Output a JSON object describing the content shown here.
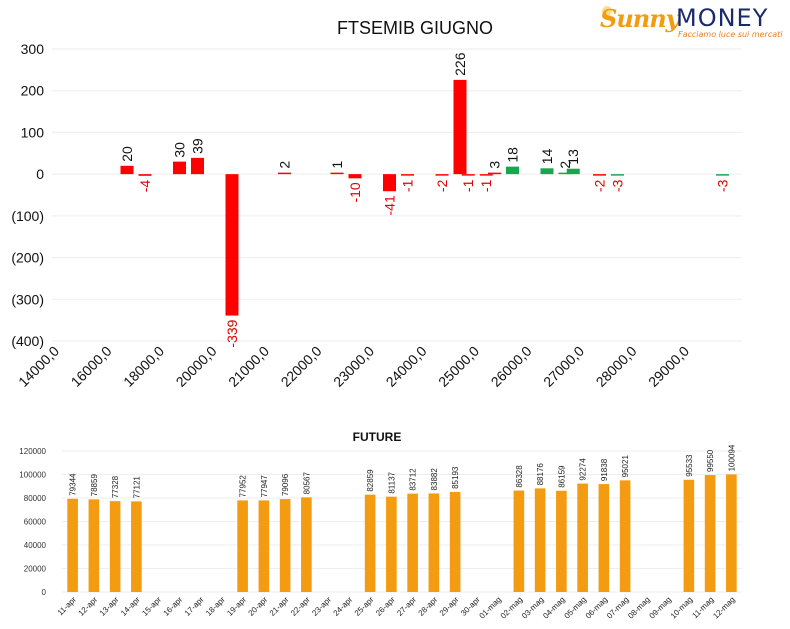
{
  "logo": {
    "brand_part1": "Sunny",
    "brand_part2": "MONEY",
    "tagline": "Facciamo luce sui mercati"
  },
  "colors": {
    "negative": "#ff0000",
    "positive": "#1aa650",
    "future_bar": "#f39c12",
    "negative_label": "#e00000",
    "grid": "#eeeeee"
  },
  "chart_data": [
    {
      "type": "bar",
      "title": "FTSEMIB GIUGNO",
      "ylim": [
        -400,
        300
      ],
      "y_ticks": [
        {
          "value": 300,
          "label": "300"
        },
        {
          "value": 200,
          "label": "200"
        },
        {
          "value": 100,
          "label": "100"
        },
        {
          "value": 0,
          "label": "0"
        },
        {
          "value": -100,
          "label": "(100)"
        },
        {
          "value": -200,
          "label": "(200)"
        },
        {
          "value": -300,
          "label": "(300)"
        },
        {
          "value": -400,
          "label": "(400)"
        }
      ],
      "x_ticks": [
        "14000,0",
        "16000,0",
        "18000,0",
        "20000,0",
        "21000,0",
        "22000,0",
        "23000,0",
        "24000,0",
        "25000,0",
        "26000,0",
        "27000,0",
        "28000,0",
        "29000,0"
      ],
      "bars": [
        {
          "group": 1,
          "side": "put",
          "value": 20,
          "label": "20"
        },
        {
          "group": 1,
          "side": "call",
          "value": -4,
          "label": "-4"
        },
        {
          "group": 2,
          "side": "put",
          "value": 30,
          "label": "30"
        },
        {
          "group": 2,
          "side": "call",
          "value": 39,
          "label": "39"
        },
        {
          "group": 3,
          "side": "put",
          "value": -339,
          "label": "-339"
        },
        {
          "group": 4,
          "side": "put",
          "value": 2,
          "label": "2"
        },
        {
          "group": 5,
          "side": "put",
          "value": 1,
          "label": "1"
        },
        {
          "group": 5,
          "side": "call",
          "value": -10,
          "label": "-10"
        },
        {
          "group": 6,
          "side": "put",
          "value": -41,
          "label": "-41"
        },
        {
          "group": 6,
          "side": "call",
          "value": -1,
          "label": "-1"
        },
        {
          "group": 7,
          "side": "put",
          "value": -2,
          "label": "-2"
        },
        {
          "group": 7,
          "side": "call",
          "value": 226,
          "label": "226"
        },
        {
          "group": 7.5,
          "side": "put",
          "value": -1,
          "label": "-1"
        },
        {
          "group": 7.5,
          "side": "call",
          "value": -1,
          "label": "-1"
        },
        {
          "group": 8,
          "side": "put",
          "value": 3,
          "label": "3"
        },
        {
          "group": 8,
          "side": "call",
          "value": 18,
          "label": "18"
        },
        {
          "group": 9,
          "side": "put",
          "value": 14,
          "label": "14"
        },
        {
          "group": 9,
          "side": "call",
          "value": 2,
          "label": "2"
        },
        {
          "group": 9.5,
          "side": "put",
          "value": 13,
          "label": "13"
        },
        {
          "group": 10,
          "side": "put",
          "value": -2,
          "label": "-2"
        },
        {
          "group": 10,
          "side": "call",
          "value": -3,
          "label": "-3"
        },
        {
          "group": 12,
          "side": "call",
          "value": -3,
          "label": "-3"
        }
      ]
    },
    {
      "type": "bar",
      "title": "FUTURE",
      "ylim": [
        0,
        120000
      ],
      "y_ticks": [
        0,
        20000,
        40000,
        60000,
        80000,
        100000,
        120000
      ],
      "categories": [
        "11-apr",
        "12-apr",
        "13-apr",
        "14-apr",
        "15-apr",
        "16-apr",
        "17-apr",
        "18-apr",
        "19-apr",
        "20-apr",
        "21-apr",
        "22-apr",
        "23-apr",
        "24-apr",
        "25-apr",
        "26-apr",
        "27-apr",
        "28-apr",
        "29-apr",
        "30-apr",
        "01-mag",
        "02-mag",
        "03-mag",
        "04-mag",
        "05-mag",
        "06-mag",
        "07-mag",
        "08-mag",
        "09-mag",
        "10-mag",
        "11-mag",
        "12-mag"
      ],
      "values": [
        79344,
        78859,
        77328,
        77121,
        null,
        null,
        null,
        null,
        77952,
        77947,
        79096,
        80567,
        null,
        null,
        82859,
        81137,
        83712,
        83882,
        85193,
        null,
        null,
        86328,
        88176,
        86159,
        92274,
        91838,
        95021,
        null,
        null,
        95533,
        99550,
        100094
      ],
      "value_labels": [
        "79344",
        "78859",
        "77328",
        "77121",
        "",
        "",
        "",
        "",
        "77952",
        "77947",
        "79096",
        "80567",
        "",
        "",
        "82859",
        "81137",
        "83712",
        "83882",
        "85193",
        "",
        "",
        "86328",
        "88176",
        "86159",
        "92274",
        "91838",
        "95021",
        "",
        "",
        "95533",
        "99550",
        "100094"
      ]
    }
  ]
}
